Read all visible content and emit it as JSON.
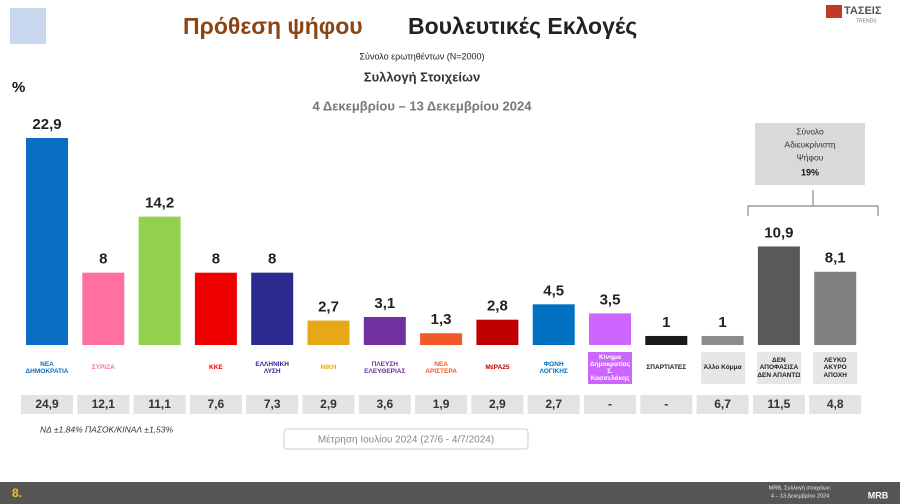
{
  "chart_data": {
    "type": "bar",
    "title_part1": "Πρόθεση ψήφου",
    "title_part2": "Βουλευτικές Εκλογές",
    "subtitle": "Σύνολο ερωτηθέντων (N=2000)",
    "subtitle2": "Συλλογή Στοιχείων",
    "date_range": "4 Δεκεμβρίου – 13 Δεκεμβρίου 2024",
    "unit_label": "%",
    "categories": [
      "ΝΕΑ ΔΗΜΟΚΡΑΤΙΑ",
      "ΣΥΡΙΖΑ",
      null,
      "ΚΚΕ",
      "ΕΛΛΗΝΙΚΗ ΛΥΣΗ",
      "ΝΙΚΗ",
      "ΠΛΕΥΣΗ ΕΛΕΥΘΕΡΙΑΣ",
      "ΝΕΑ ΑΡΙΣΤΕΡΑ",
      "ΜέΡΑ25",
      "ΦΩΝΗ ΛΟΓΙΚΗΣ",
      "Κίνημα Δημοκρατίας Σ. Κασσελάκης",
      "ΣΠΑΡΤΙΑΤΕΣ",
      "Άλλο Κόμμα",
      "ΔΕΝ ΑΠΟΦΑΣΙΣΑ ΔΕΝ ΑΠΑΝΤΩ",
      "ΛΕΥΚΟ ΑΚΥΡΟ ΑΠΟΧΗ"
    ],
    "values": [
      22.9,
      8,
      14.2,
      8,
      8,
      2.7,
      3.1,
      1.3,
      2.8,
      4.5,
      3.5,
      1,
      1,
      10.9,
      8.1
    ],
    "value_labels": [
      "22,9",
      "8",
      "14,2",
      "8",
      "8",
      "2,7",
      "3,1",
      "1,3",
      "2,8",
      "4,5",
      "3,5",
      "1",
      "1",
      "10,9",
      "8,1"
    ],
    "colors": [
      "#0a6fc2",
      "#ff6f9f",
      "#92d050",
      "#f00000",
      "#2b2a8f",
      "#e6a817",
      "#7030a0",
      "#f05a28",
      "#c00000",
      "#0070c0",
      "#cc66ff",
      "#1a1a1a",
      "#8c8c8c",
      "#595959",
      "#808080"
    ],
    "previous_title": "Μέτρηση Ιουλίου 2024 (27/6 - 4/7/2024)",
    "previous": [
      "24,9",
      "12,1",
      "11,1",
      "7,6",
      "7,3",
      "2,9",
      "3,6",
      "1,9",
      "2,9",
      "2,7",
      "-",
      "-",
      "6,7",
      "11,5",
      "4,8"
    ],
    "undecided_box": {
      "lines": [
        "Σύνολο",
        "Αδιευκρίνιστη",
        "Ψήφου"
      ],
      "value_label": "19%"
    },
    "note": "ΝΔ ±1,84% ΠΑΣΟΚ/ΚΙΝΑΛ ±1,53%",
    "page_number": "8.",
    "footer_source": [
      "MRB, Συλλογή στοιχείων:",
      "4 – 13 Δεκεμβρίου 2024"
    ],
    "brand": "ΤΑΣΕΙΣ",
    "brand_sub": "TRENDS",
    "brand2": "MRB"
  }
}
